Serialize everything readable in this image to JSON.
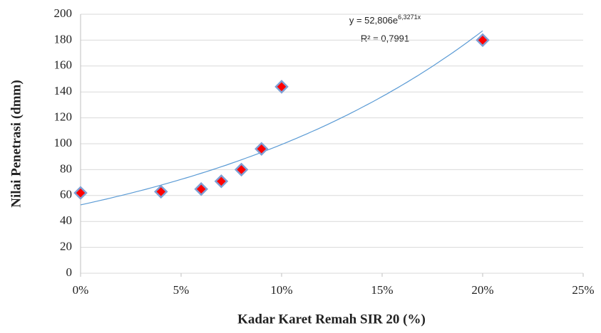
{
  "chart_data": {
    "type": "scatter",
    "y_label": "Nilai Penetrasi (dmm)",
    "x_label": "Kadar Karet Remah SIR 20 (%)",
    "x": [
      0,
      0.04,
      0.06,
      0.07,
      0.08,
      0.09,
      0.1,
      0.2
    ],
    "values": [
      62,
      63,
      65,
      71,
      80,
      96,
      144,
      180
    ],
    "color": "#ff0000",
    "edge_color": "#7f9fd4",
    "xlim": [
      0,
      0.25
    ],
    "xticks": [
      {
        "value": 0,
        "label": "0%"
      },
      {
        "value": 0.05,
        "label": "5%"
      },
      {
        "value": 0.1,
        "label": "10%"
      },
      {
        "value": 0.15,
        "label": "15%"
      },
      {
        "value": 0.2,
        "label": "20%"
      },
      {
        "value": 0.25,
        "label": "25%"
      }
    ],
    "ylim": [
      0,
      200
    ],
    "yticks": [
      0,
      20,
      40,
      60,
      80,
      100,
      120,
      140,
      160,
      180,
      200
    ],
    "grid": true,
    "trendline": {
      "equation": "y = 52,806e",
      "exponent": "6,3271x",
      "r2_label": "R² = 0,7991",
      "a": 52.806,
      "b": 6.3271,
      "color": "#5b9bd5"
    }
  }
}
